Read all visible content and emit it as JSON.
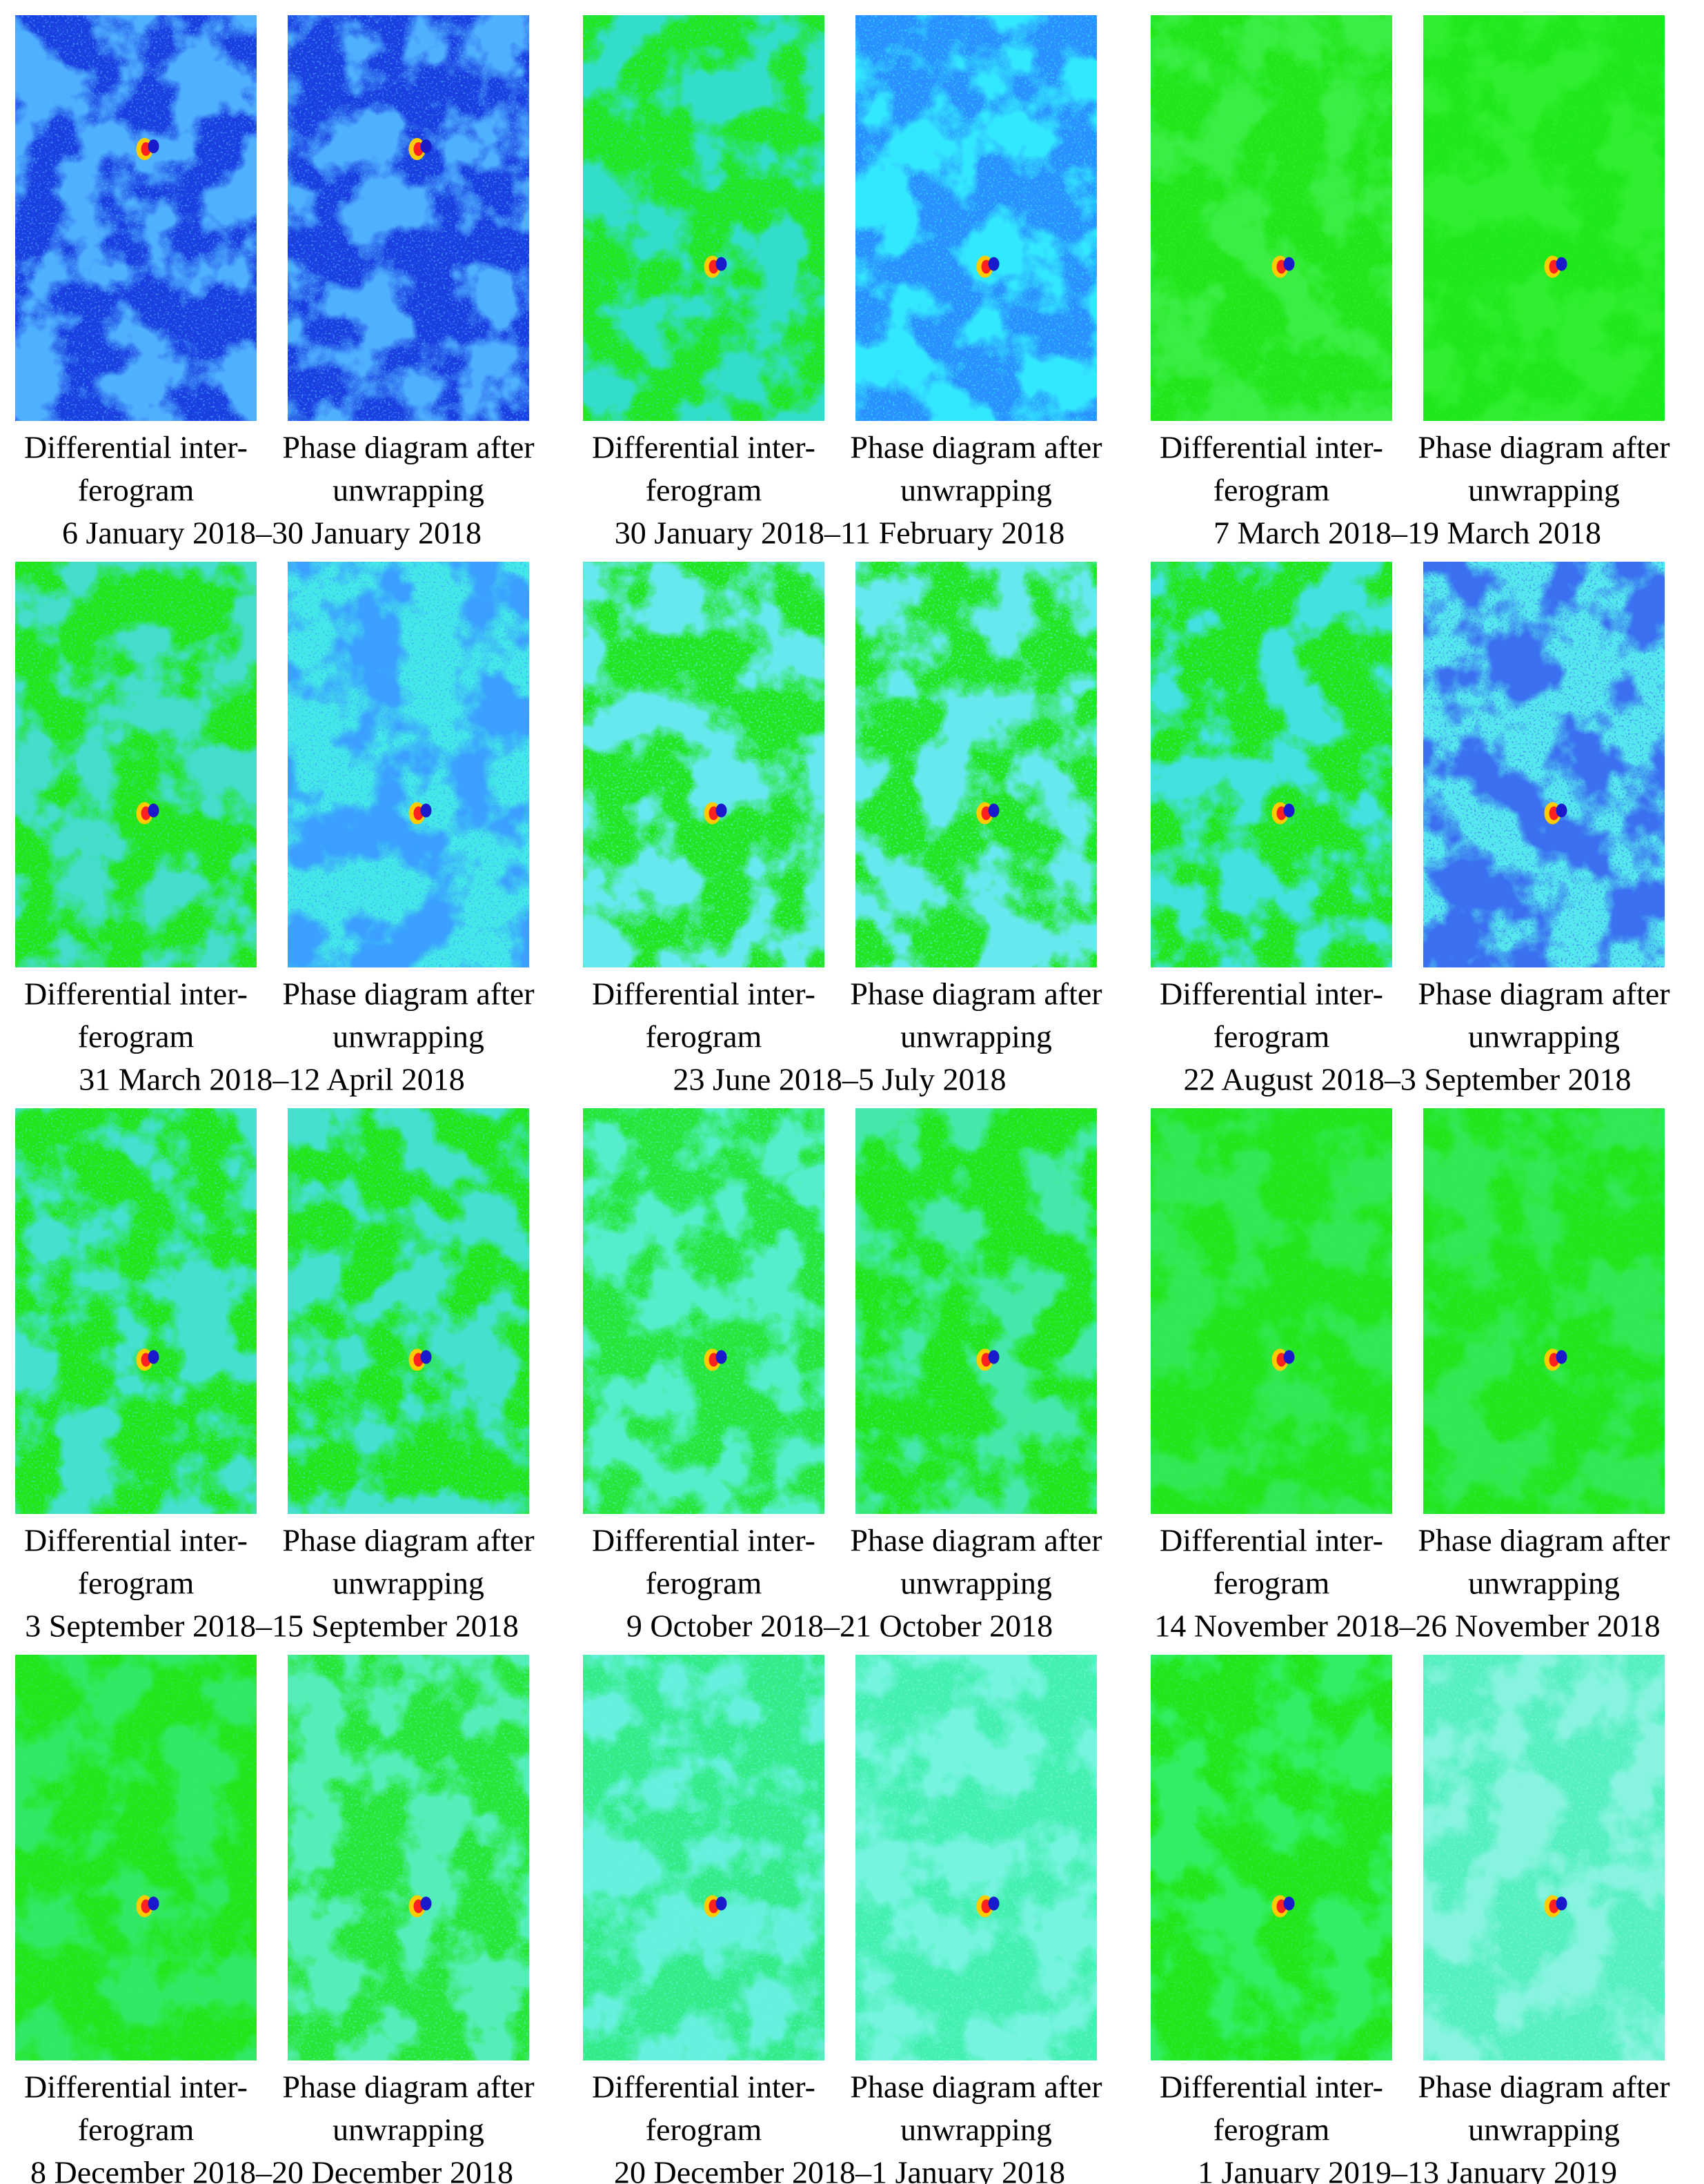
{
  "panels": [
    {
      "left_caption": [
        "Differential inter-",
        "ferogram"
      ],
      "right_caption": [
        "Phase diagram after",
        "unwrapping"
      ],
      "date": "6 January 2018–30 January 2018"
    },
    {
      "left_caption": [
        "Differential inter-",
        "ferogram"
      ],
      "right_caption": [
        "Phase diagram after",
        "unwrapping"
      ],
      "date": "30 January 2018–11 February 2018"
    },
    {
      "left_caption": [
        "Differential inter-",
        "ferogram"
      ],
      "right_caption": [
        "Phase diagram after",
        "unwrapping"
      ],
      "date": "7 March 2018–19 March 2018"
    },
    {
      "left_caption": [
        "Differential inter-",
        "ferogram"
      ],
      "right_caption": [
        "Phase diagram after",
        "unwrapping"
      ],
      "date": "31 March 2018–12 April 2018"
    },
    {
      "left_caption": [
        "Differential inter-",
        "ferogram"
      ],
      "right_caption": [
        "Phase diagram after",
        "unwrapping"
      ],
      "date": "23 June 2018–5 July 2018"
    },
    {
      "left_caption": [
        "Differential inter-",
        "ferogram"
      ],
      "right_caption": [
        "Phase diagram after",
        "unwrapping"
      ],
      "date": "22 August 2018–3 September 2018"
    },
    {
      "left_caption": [
        "Differential inter-",
        "ferogram"
      ],
      "right_caption": [
        "Phase diagram after",
        "unwrapping"
      ],
      "date": "3 September 2018–15 September 2018"
    },
    {
      "left_caption": [
        "Differential inter-",
        "ferogram"
      ],
      "right_caption": [
        "Phase diagram after",
        "unwrapping"
      ],
      "date": "9 October 2018–21 October 2018"
    },
    {
      "left_caption": [
        "Differential inter-",
        "ferogram"
      ],
      "right_caption": [
        "Phase diagram after",
        "unwrapping"
      ],
      "date": "14 November 2018–26 November 2018"
    },
    {
      "left_caption": [
        "Differential inter-",
        "ferogram"
      ],
      "right_caption": [
        "Phase diagram after",
        "unwrapping"
      ],
      "date": "8 December 2018–20 December 2018"
    },
    {
      "left_caption": [
        "Differential inter-",
        "ferogram"
      ],
      "right_caption": [
        "Phase diagram after",
        "unwrapping"
      ],
      "date": "20 December 2018–1 January 2018"
    },
    {
      "left_caption": [
        "Differential inter-",
        "ferogram"
      ],
      "right_caption": [
        "Phase diagram after",
        "unwrapping"
      ],
      "date": "1 January 2019–13 January 2019"
    }
  ]
}
